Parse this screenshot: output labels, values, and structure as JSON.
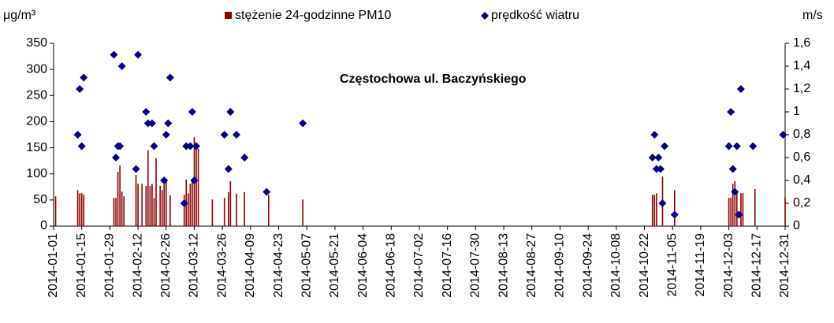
{
  "chart_data": {
    "type": "bar",
    "title": "Częstochowa ul. Baczyńskiego",
    "y_label": "μg/m³",
    "y2_label": "m/s",
    "xlim": [
      "2014-01-01",
      "2014-12-31"
    ],
    "xticks": [
      "2014-01-01",
      "2014-01-15",
      "2014-01-29",
      "2014-02-12",
      "2014-02-26",
      "2014-03-12",
      "2014-03-26",
      "2014-04-09",
      "2014-04-23",
      "2014-05-07",
      "2014-05-21",
      "2014-06-04",
      "2014-06-18",
      "2014-07-02",
      "2014-07-16",
      "2014-07-30",
      "2014-08-13",
      "2014-08-27",
      "2014-09-10",
      "2014-09-24",
      "2014-10-08",
      "2014-10-22",
      "2014-11-05",
      "2014-11-19",
      "2014-12-03",
      "2014-12-17",
      "2014-12-31"
    ],
    "ylim": [
      0,
      350
    ],
    "yticks": [
      0,
      50,
      100,
      150,
      200,
      250,
      300,
      350
    ],
    "y2lim": [
      0,
      1.6
    ],
    "y2ticks": [
      0,
      {
        "value": 0.2,
        "label": "0,2"
      },
      {
        "value": 0.4,
        "label": "0,4"
      },
      {
        "value": 0.6,
        "label": "0,6"
      },
      {
        "value": 0.8,
        "label": "0,8"
      },
      1,
      {
        "value": 1.2,
        "label": "1,2"
      },
      {
        "value": 1.4,
        "label": "1,4"
      },
      {
        "value": 1.6,
        "label": "1,6"
      }
    ],
    "series": [
      {
        "name": "stężenie 24-godzinne PM10",
        "type": "bar",
        "color": "#8b0000",
        "x": [
          "2014-01-02",
          "2014-01-13",
          "2014-01-14",
          "2014-01-15",
          "2014-01-16",
          "2014-01-31",
          "2014-02-01",
          "2014-02-02",
          "2014-02-03",
          "2014-02-04",
          "2014-02-05",
          "2014-02-11",
          "2014-02-12",
          "2014-02-14",
          "2014-02-16",
          "2014-02-17",
          "2014-02-18",
          "2014-02-19",
          "2014-02-20",
          "2014-02-21",
          "2014-02-23",
          "2014-02-24",
          "2014-02-25",
          "2014-02-26",
          "2014-02-28",
          "2014-03-07",
          "2014-03-08",
          "2014-03-09",
          "2014-03-10",
          "2014-03-11",
          "2014-03-12",
          "2014-03-13",
          "2014-03-14",
          "2014-03-21",
          "2014-03-27",
          "2014-03-29",
          "2014-03-30",
          "2014-04-02",
          "2014-04-06",
          "2014-04-18",
          "2014-05-05",
          "2014-10-26",
          "2014-10-27",
          "2014-10-28",
          "2014-10-31",
          "2014-11-06",
          "2014-12-03",
          "2014-12-04",
          "2014-12-05",
          "2014-12-06",
          "2014-12-07",
          "2014-12-09",
          "2014-12-10",
          "2014-12-16",
          "2014-12-31"
        ],
        "values": [
          57,
          69,
          63,
          63,
          60,
          54,
          54,
          104,
          116,
          66,
          57,
          98,
          81,
          81,
          77,
          145,
          77,
          81,
          54,
          130,
          77,
          69,
          80,
          86,
          59,
          60,
          89,
          63,
          81,
          90,
          170,
          154,
          148,
          51,
          54,
          65,
          86,
          62,
          65,
          60,
          51,
          60,
          60,
          63,
          95,
          69,
          54,
          54,
          81,
          86,
          69,
          63,
          63,
          71,
          56
        ]
      },
      {
        "name": "prędkość wiatru",
        "type": "scatter",
        "axis": "y2",
        "color": "#000080",
        "x": [
          "2014-01-13",
          "2014-01-14",
          "2014-01-15",
          "2014-01-16",
          "2014-01-31",
          "2014-02-01",
          "2014-02-02",
          "2014-02-03",
          "2014-02-04",
          "2014-02-11",
          "2014-02-12",
          "2014-02-16",
          "2014-02-17",
          "2014-02-19",
          "2014-02-20",
          "2014-02-25",
          "2014-02-26",
          "2014-02-27",
          "2014-02-28",
          "2014-03-07",
          "2014-03-08",
          "2014-03-10",
          "2014-03-11",
          "2014-03-12",
          "2014-03-13",
          "2014-03-27",
          "2014-03-29",
          "2014-03-30",
          "2014-04-02",
          "2014-04-06",
          "2014-04-17",
          "2014-05-05",
          "2014-10-26",
          "2014-10-27",
          "2014-10-28",
          "2014-10-29",
          "2014-10-30",
          "2014-10-31",
          "2014-11-01",
          "2014-11-06",
          "2014-12-03",
          "2014-12-04",
          "2014-12-05",
          "2014-12-06",
          "2014-12-07",
          "2014-12-08",
          "2014-12-09",
          "2014-12-15",
          "2014-12-30"
        ],
        "values": [
          0.8,
          1.2,
          0.7,
          1.3,
          1.5,
          0.6,
          0.7,
          0.7,
          1.4,
          0.5,
          1.5,
          1.0,
          0.9,
          0.9,
          0.7,
          0.4,
          0.8,
          0.9,
          1.3,
          0.2,
          0.7,
          0.7,
          1.0,
          0.4,
          0.7,
          0.8,
          0.5,
          1.0,
          0.8,
          0.6,
          0.3,
          0.9,
          0.6,
          0.8,
          0.5,
          0.6,
          0.5,
          0.2,
          0.7,
          0.1,
          0.7,
          1.0,
          0.5,
          0.3,
          0.7,
          0.1,
          1.2,
          0.7,
          0.8
        ]
      }
    ]
  }
}
